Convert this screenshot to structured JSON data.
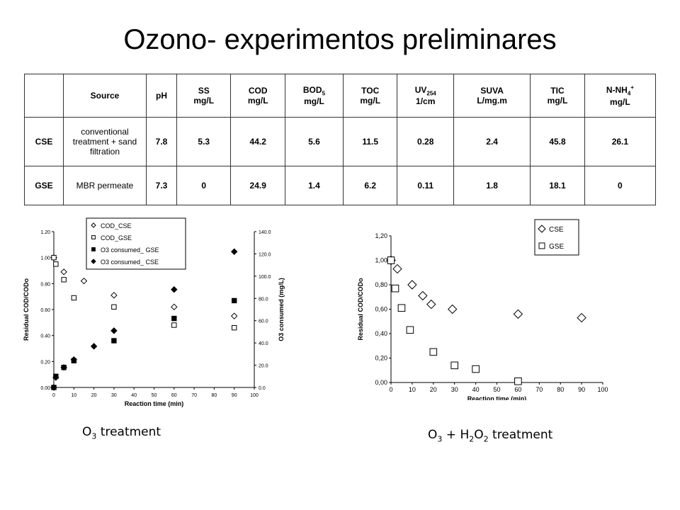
{
  "title": "Ozono- experimentos preliminares",
  "table": {
    "headers": [
      {
        "label": "",
        "sub": ""
      },
      {
        "label": "Source",
        "sub": ""
      },
      {
        "label": "pH",
        "sub": ""
      },
      {
        "label": "SS",
        "sub": "mg/L"
      },
      {
        "label": "COD",
        "sub": "mg/L"
      },
      {
        "label": "BOD5",
        "sub": "mg/L"
      },
      {
        "label": "TOC",
        "sub": "mg/L"
      },
      {
        "label": "UV254",
        "sub": "1/cm"
      },
      {
        "label": "SUVA",
        "sub": "L/mg.m"
      },
      {
        "label": "TIC",
        "sub": "mg/L"
      },
      {
        "label": "N-NH4+",
        "sub": "mg/L"
      }
    ],
    "rows": [
      {
        "id": "CSE",
        "source": "conventional treatment + sand filtration",
        "values": [
          "7.8",
          "5.3",
          "44.2",
          "5.6",
          "11.5",
          "0.28",
          "2.4",
          "45.8",
          "26.1"
        ]
      },
      {
        "id": "GSE",
        "source": "MBR permeate",
        "values": [
          "7.3",
          "0",
          "24.9",
          "1.4",
          "6.2",
          "0.11",
          "1.8",
          "18.1",
          "0"
        ]
      }
    ]
  },
  "chart_data": [
    {
      "type": "scatter",
      "caption": "O3 treatment",
      "xlabel": "Reaction time (min)",
      "ylabel": "Residual COD/CODo",
      "y2label": "O3 consumed (mg/L)",
      "xlim": [
        0,
        100
      ],
      "ylim": [
        0,
        1.2
      ],
      "y2lim": [
        0,
        140
      ],
      "xticks": [
        "0",
        "10",
        "20",
        "30",
        "40",
        "50",
        "60",
        "70",
        "80",
        "90",
        "100"
      ],
      "yticks": [
        "0.00",
        "0.20",
        "0.40",
        "0.60",
        "0.80",
        "1.00",
        "1.20"
      ],
      "y2ticks": [
        "0.0",
        "20.0",
        "40.0",
        "60.0",
        "80.0",
        "100.0",
        "120.0",
        "140.0"
      ],
      "legend_position": "top",
      "series": [
        {
          "name": "COD_CSE",
          "marker": "diamond-open",
          "axis": "left",
          "points": [
            [
              0,
              1.0
            ],
            [
              5,
              0.89
            ],
            [
              15,
              0.82
            ],
            [
              30,
              0.71
            ],
            [
              60,
              0.62
            ],
            [
              90,
              0.55
            ]
          ]
        },
        {
          "name": "COD_GSE",
          "marker": "square-open",
          "axis": "left",
          "points": [
            [
              0,
              1.0
            ],
            [
              1,
              0.95
            ],
            [
              5,
              0.83
            ],
            [
              10,
              0.69
            ],
            [
              30,
              0.62
            ],
            [
              60,
              0.48
            ],
            [
              90,
              0.46
            ]
          ]
        },
        {
          "name": "O3 consumed_ GSE",
          "marker": "square-filled",
          "axis": "right",
          "points": [
            [
              0,
              0
            ],
            [
              1,
              10
            ],
            [
              5,
              18
            ],
            [
              10,
              24
            ],
            [
              30,
              42
            ],
            [
              60,
              62
            ],
            [
              90,
              78
            ]
          ]
        },
        {
          "name": "O3 consumed_ CSE",
          "marker": "diamond-filled",
          "axis": "right",
          "points": [
            [
              0,
              0
            ],
            [
              1,
              9
            ],
            [
              5,
              18
            ],
            [
              10,
              25
            ],
            [
              20,
              37
            ],
            [
              30,
              51
            ],
            [
              60,
              88
            ],
            [
              90,
              122
            ]
          ]
        }
      ]
    },
    {
      "type": "scatter",
      "caption": "O3 + H2O2 treatment",
      "xlabel": "Reaction time (min)",
      "ylabel": "Residual COD/CODo",
      "xlim": [
        0,
        100
      ],
      "ylim": [
        0,
        1.2
      ],
      "xticks": [
        "0",
        "10",
        "20",
        "30",
        "40",
        "50",
        "60",
        "70",
        "80",
        "90",
        "100"
      ],
      "yticks": [
        "0,00",
        "0,20",
        "0,40",
        "0,60",
        "0,80",
        "1,00",
        "1,20"
      ],
      "legend_position": "top-right",
      "series": [
        {
          "name": "CSE",
          "marker": "diamond-open",
          "points": [
            [
              0,
              1.0
            ],
            [
              3,
              0.93
            ],
            [
              10,
              0.8
            ],
            [
              15,
              0.71
            ],
            [
              19,
              0.64
            ],
            [
              29,
              0.6
            ],
            [
              60,
              0.56
            ],
            [
              90,
              0.53
            ]
          ]
        },
        {
          "name": "GSE",
          "marker": "square-open",
          "points": [
            [
              0,
              1.0
            ],
            [
              2,
              0.77
            ],
            [
              5,
              0.61
            ],
            [
              9,
              0.43
            ],
            [
              20,
              0.25
            ],
            [
              30,
              0.14
            ],
            [
              40,
              0.11
            ],
            [
              60,
              0.01
            ]
          ]
        }
      ]
    }
  ]
}
